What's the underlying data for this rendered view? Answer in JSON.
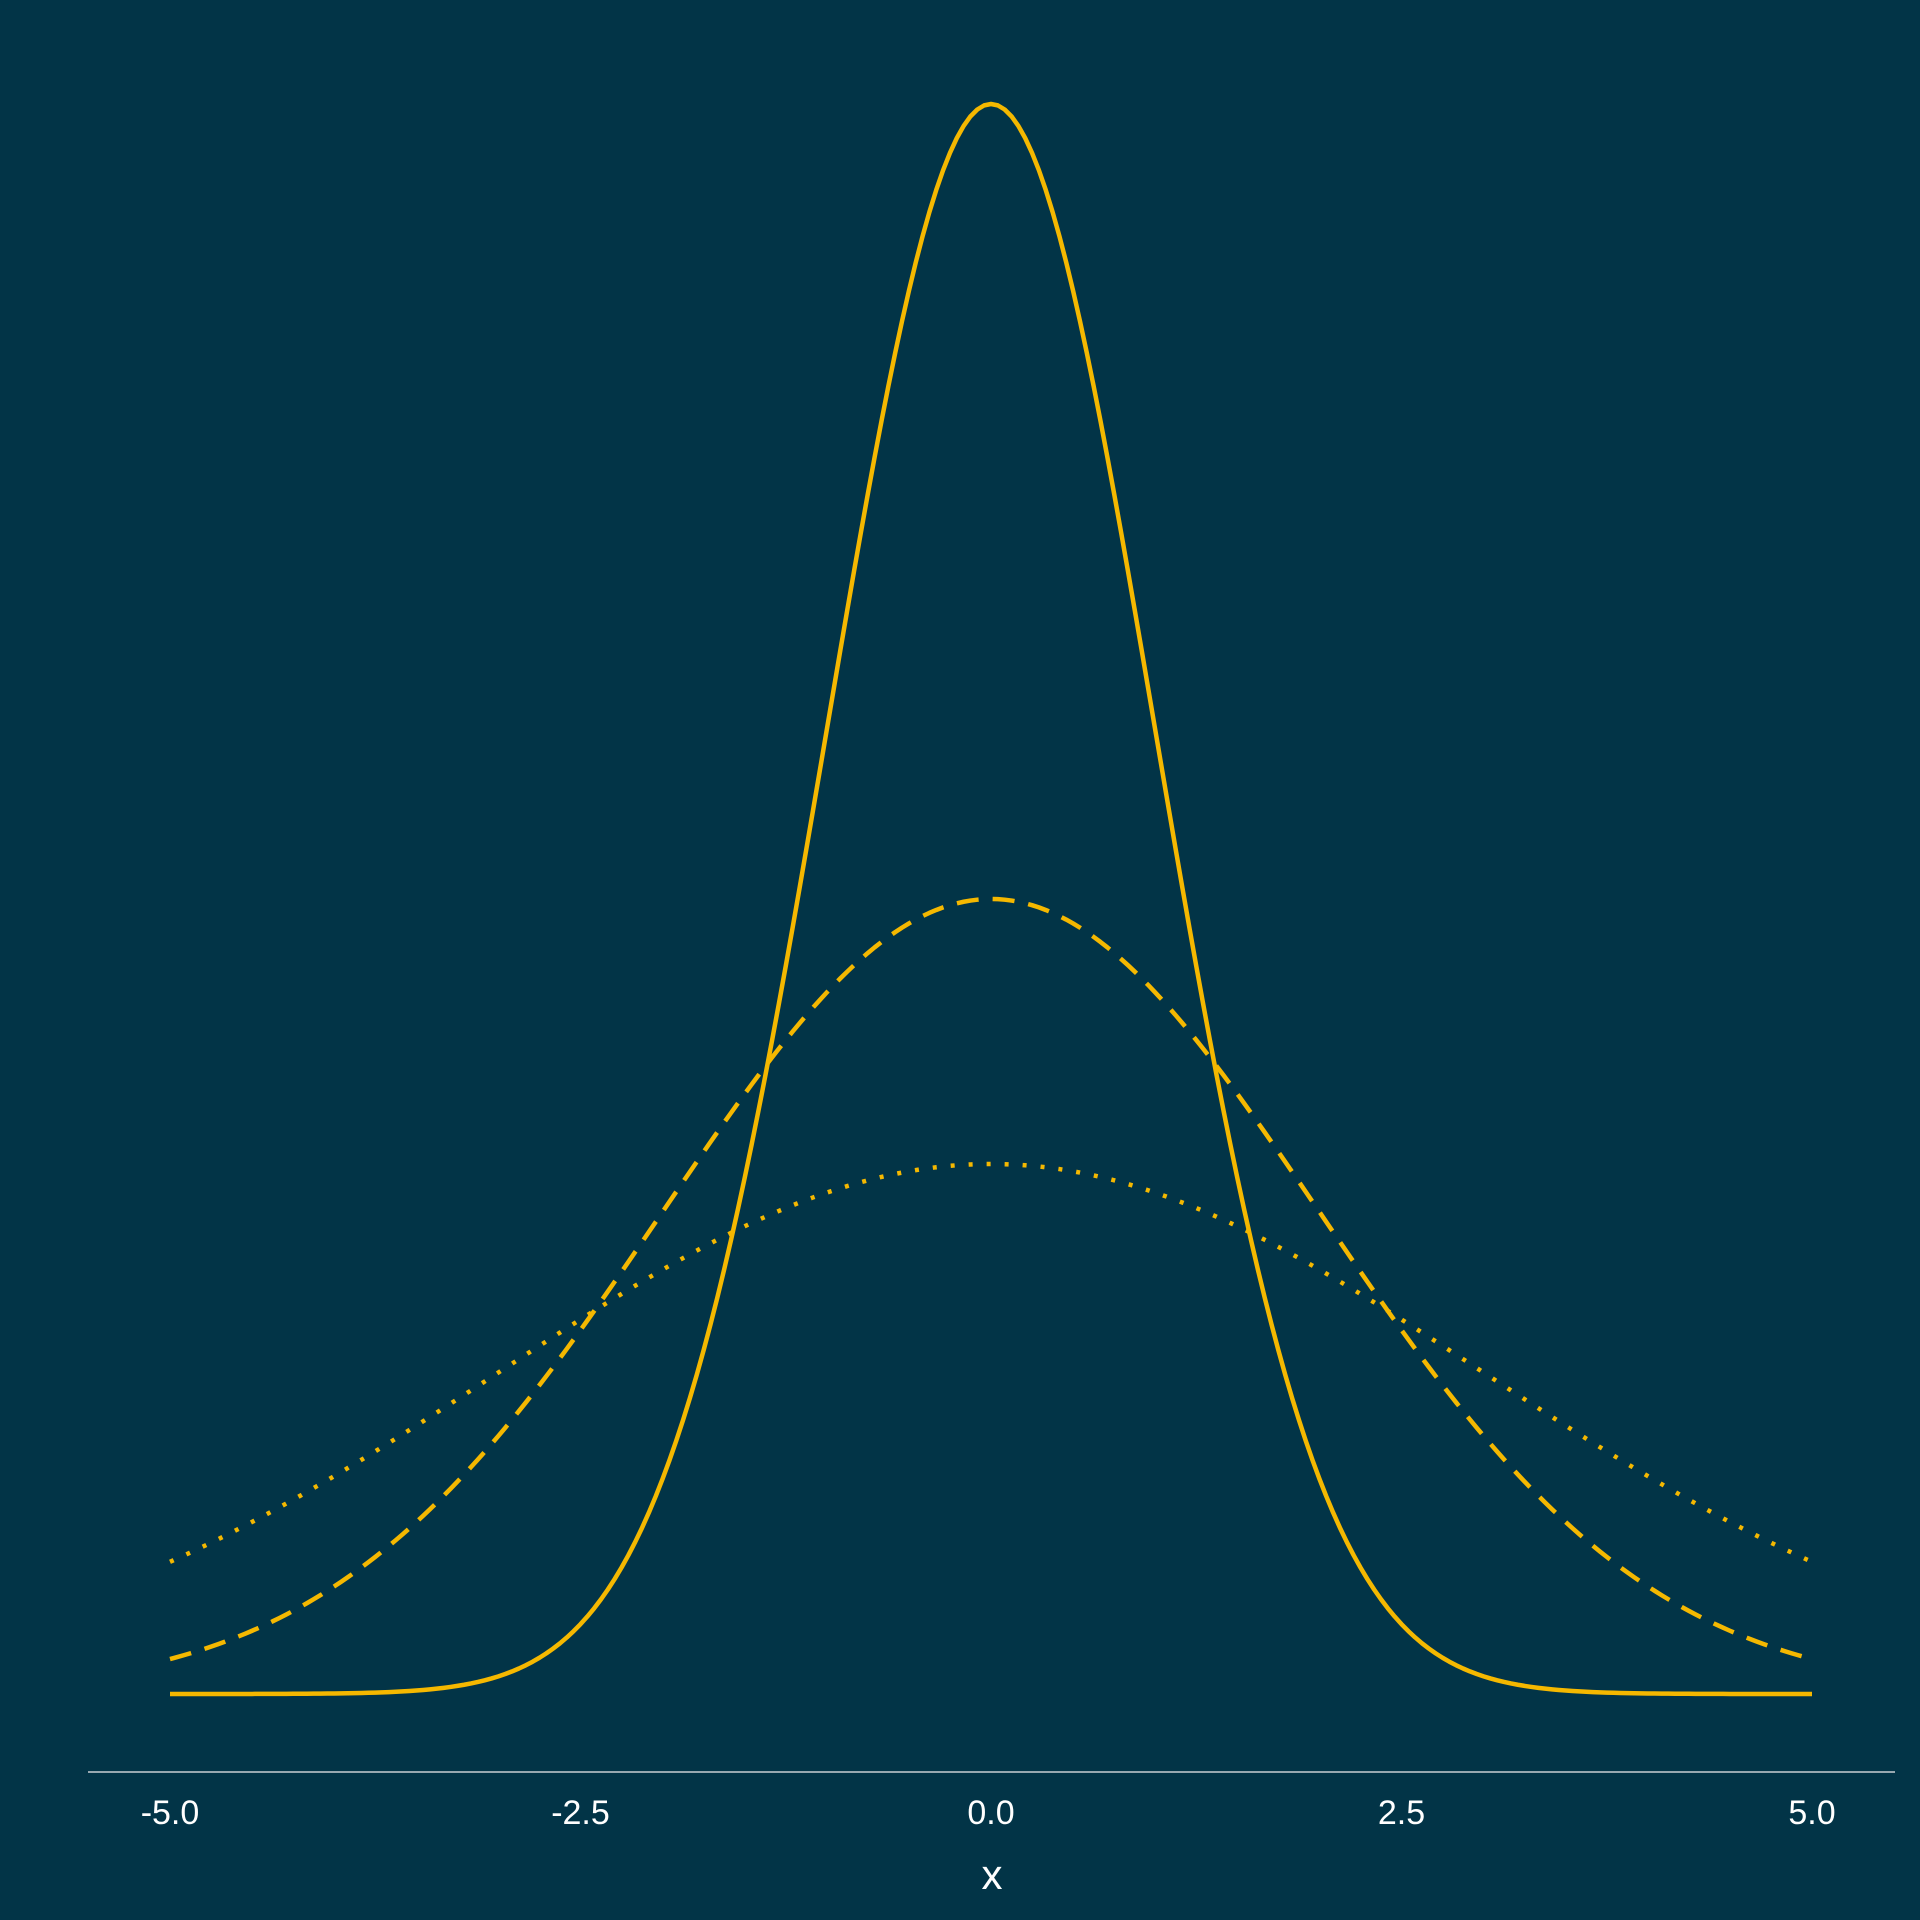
{
  "chart_data": {
    "type": "line",
    "title": "",
    "xlabel": "x",
    "ylabel": "",
    "xlim": [
      -5.0,
      5.0
    ],
    "ylim": [
      0,
      0.4
    ],
    "x_ticks": [
      "-5.0",
      "-2.5",
      "0.0",
      "2.5",
      "5.0"
    ],
    "grid": false,
    "legend": "none",
    "series": [
      {
        "line_style": "solid",
        "distribution": "normal",
        "mean": 0,
        "sd": 1,
        "points": [
          [
            -5.0,
            0.0
          ],
          [
            -4.0,
            0.0001
          ],
          [
            -3.5,
            0.0009
          ],
          [
            -3.0,
            0.0044
          ],
          [
            -2.5,
            0.0175
          ],
          [
            -2.0,
            0.054
          ],
          [
            -1.5,
            0.1295
          ],
          [
            -1.0,
            0.242
          ],
          [
            -0.5,
            0.3521
          ],
          [
            0.0,
            0.3989
          ],
          [
            0.5,
            0.3521
          ],
          [
            1.0,
            0.242
          ],
          [
            1.5,
            0.1295
          ],
          [
            2.0,
            0.054
          ],
          [
            2.5,
            0.0175
          ],
          [
            3.0,
            0.0044
          ],
          [
            3.5,
            0.0009
          ],
          [
            4.0,
            0.0001
          ],
          [
            5.0,
            0.0
          ]
        ]
      },
      {
        "line_style": "dashed",
        "distribution": "normal",
        "mean": 0,
        "sd": 2,
        "points": [
          [
            -5.0,
            0.0088
          ],
          [
            -4.0,
            0.027
          ],
          [
            -3.0,
            0.0648
          ],
          [
            -2.0,
            0.121
          ],
          [
            -1.0,
            0.176
          ],
          [
            0.0,
            0.1995
          ],
          [
            1.0,
            0.176
          ],
          [
            2.0,
            0.121
          ],
          [
            3.0,
            0.0648
          ],
          [
            4.0,
            0.027
          ],
          [
            5.0,
            0.0088
          ]
        ]
      },
      {
        "line_style": "dotted",
        "distribution": "normal",
        "mean": 0,
        "sd": 3,
        "points": [
          [
            -5.0,
            0.0331
          ],
          [
            -4.0,
            0.0547
          ],
          [
            -3.0,
            0.0807
          ],
          [
            -2.0,
            0.1065
          ],
          [
            -1.0,
            0.1258
          ],
          [
            0.0,
            0.133
          ],
          [
            1.0,
            0.1258
          ],
          [
            2.0,
            0.1065
          ],
          [
            3.0,
            0.0807
          ],
          [
            4.0,
            0.0547
          ],
          [
            5.0,
            0.0331
          ]
        ]
      }
    ]
  },
  "colors": {
    "background": "#023447",
    "line": "#F5B800",
    "axis": "#C9CFD4",
    "text": "#FFFFFF"
  }
}
